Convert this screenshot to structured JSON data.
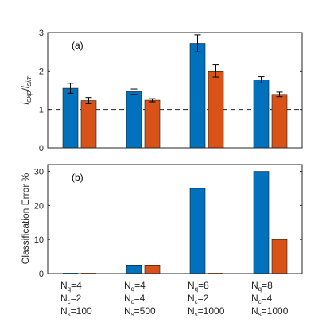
{
  "chart_data": [
    {
      "type": "bar",
      "panel_label": "(a)",
      "ylabel": "l_exp / l_sim",
      "ylabel_parts": {
        "l1": "l",
        "s1": "exp",
        "slash": "/",
        "l2": "l",
        "s2": "sim"
      },
      "ylim": [
        0,
        3
      ],
      "yticks": [
        "0",
        "1",
        "2",
        "3"
      ],
      "reference_line": 1,
      "series": [
        {
          "color": "#0072BD",
          "values": [
            1.55,
            1.46,
            2.72,
            1.77
          ],
          "errors": [
            0.13,
            0.07,
            0.22,
            0.08
          ]
        },
        {
          "color": "#D95319",
          "values": [
            1.23,
            1.24,
            2.0,
            1.39
          ],
          "errors": [
            0.08,
            0.04,
            0.16,
            0.06
          ]
        }
      ]
    },
    {
      "type": "bar",
      "panel_label": "(b)",
      "ylabel": "Classification Error %",
      "ylim": [
        0,
        32
      ],
      "yticks": [
        "0",
        "10",
        "20",
        "30"
      ],
      "series": [
        {
          "color": "#0072BD",
          "values": [
            0,
            2.5,
            25,
            30
          ]
        },
        {
          "color": "#D95319",
          "values": [
            0,
            2.5,
            0,
            10
          ]
        }
      ]
    }
  ],
  "categories": [
    {
      "q": "4",
      "c": "2",
      "s": "100"
    },
    {
      "q": "4",
      "c": "4",
      "s": "500"
    },
    {
      "q": "8",
      "c": "2",
      "s": "1000"
    },
    {
      "q": "8",
      "c": "4",
      "s": "1000"
    }
  ],
  "category_symbols": {
    "n": "N",
    "q": "q",
    "c": "c",
    "s": "s",
    "eq": "="
  }
}
